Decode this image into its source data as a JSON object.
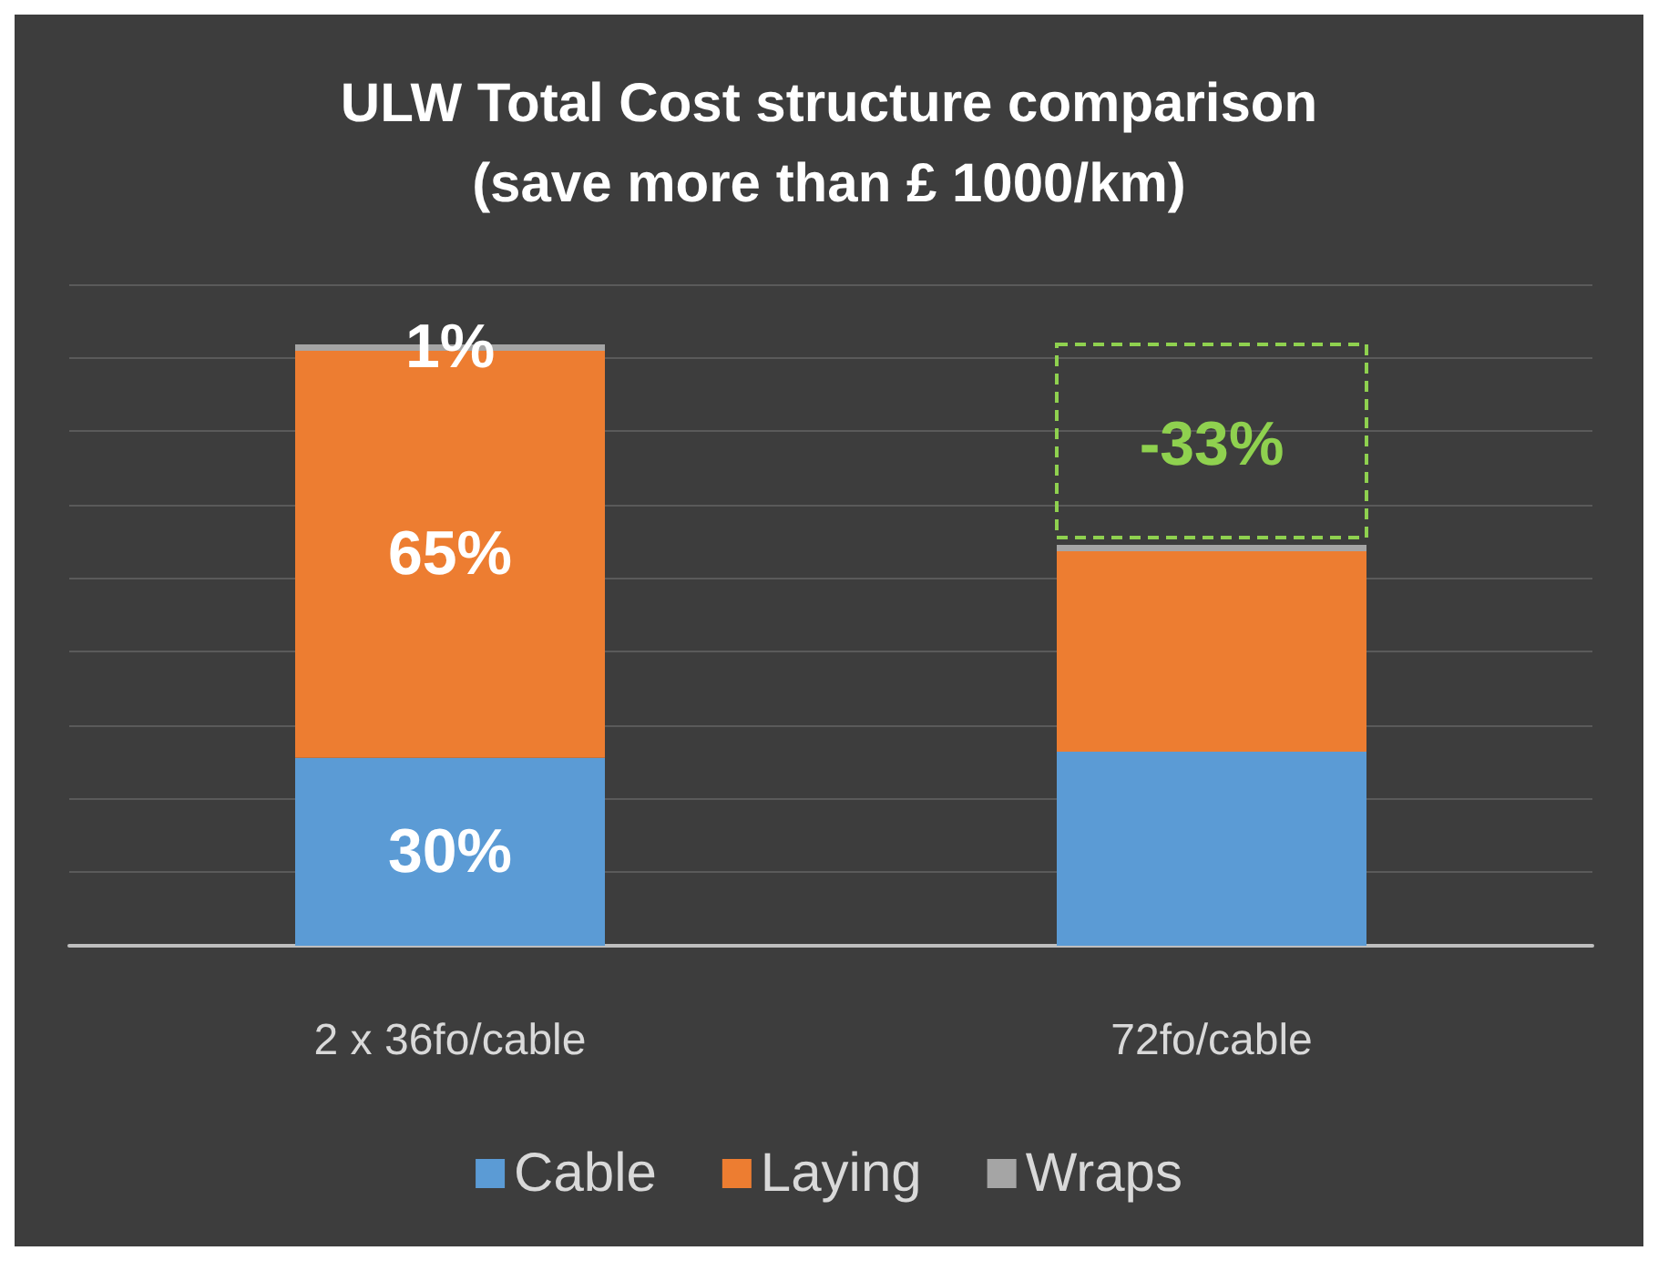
{
  "chart_data": {
    "type": "bar",
    "title": "ULW Total Cost structure comparison\n(save more than £ 1000/km)",
    "categories": [
      "2 x 36fo/cable",
      "72fo/cable"
    ],
    "stacked": true,
    "grid": "y",
    "legend": "bottom",
    "series": [
      {
        "name": "Cable",
        "color": "#5b9bd5",
        "values": [
          30,
          31
        ],
        "value_labels": [
          "30%",
          null
        ]
      },
      {
        "name": "Laying",
        "color": "#ed7d31",
        "values": [
          65,
          32
        ],
        "value_labels": [
          "65%",
          null
        ]
      },
      {
        "name": "Wraps",
        "color": "#a5a5a5",
        "values": [
          1,
          1
        ],
        "value_labels": [
          "1%",
          null
        ]
      }
    ],
    "annotations": [
      "-33%"
    ]
  }
}
